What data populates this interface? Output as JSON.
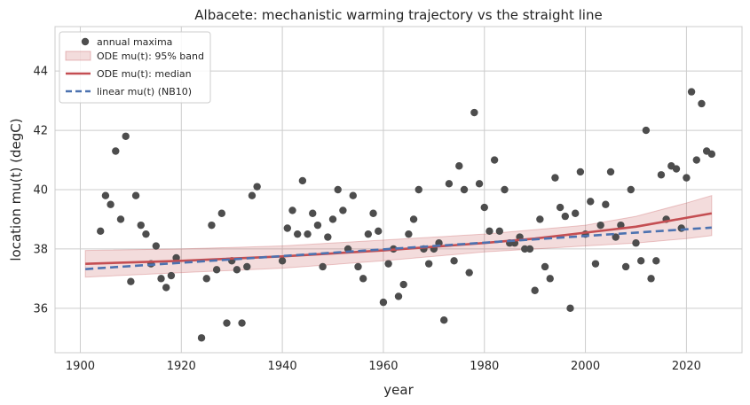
{
  "chart_data": {
    "type": "scatter",
    "title": "Albacete: mechanistic warming trajectory vs the straight line",
    "xlabel": "year",
    "ylabel": "location mu(t)  (degC)",
    "xlim": [
      1895,
      2031
    ],
    "ylim": [
      34.5,
      45.5
    ],
    "xticks": [
      1900,
      1920,
      1940,
      1960,
      1980,
      2000,
      2020
    ],
    "yticks": [
      36,
      38,
      40,
      42,
      44
    ],
    "grid": true,
    "legend_position": "top-left",
    "series": [
      {
        "name": "annual maxima",
        "kind": "points",
        "color": "#4d4d4d",
        "points": [
          [
            1904,
            38.6
          ],
          [
            1905,
            39.8
          ],
          [
            1906,
            39.5
          ],
          [
            1907,
            41.3
          ],
          [
            1908,
            39.0
          ],
          [
            1909,
            41.8
          ],
          [
            1910,
            36.9
          ],
          [
            1911,
            39.8
          ],
          [
            1912,
            38.8
          ],
          [
            1913,
            38.5
          ],
          [
            1914,
            37.5
          ],
          [
            1915,
            38.1
          ],
          [
            1916,
            37.0
          ],
          [
            1917,
            36.7
          ],
          [
            1918,
            37.1
          ],
          [
            1919,
            37.7
          ],
          [
            1924,
            35.0
          ],
          [
            1925,
            37.0
          ],
          [
            1926,
            38.8
          ],
          [
            1927,
            37.3
          ],
          [
            1928,
            39.2
          ],
          [
            1929,
            35.5
          ],
          [
            1930,
            37.6
          ],
          [
            1931,
            37.3
          ],
          [
            1932,
            35.5
          ],
          [
            1933,
            37.4
          ],
          [
            1934,
            39.8
          ],
          [
            1935,
            40.1
          ],
          [
            1940,
            37.6
          ],
          [
            1941,
            38.7
          ],
          [
            1942,
            39.3
          ],
          [
            1943,
            38.5
          ],
          [
            1944,
            40.3
          ],
          [
            1945,
            38.5
          ],
          [
            1946,
            39.2
          ],
          [
            1947,
            38.8
          ],
          [
            1948,
            37.4
          ],
          [
            1949,
            38.4
          ],
          [
            1950,
            39.0
          ],
          [
            1951,
            40.0
          ],
          [
            1952,
            39.3
          ],
          [
            1953,
            38.0
          ],
          [
            1954,
            39.8
          ],
          [
            1955,
            37.4
          ],
          [
            1956,
            37.0
          ],
          [
            1957,
            38.5
          ],
          [
            1958,
            39.2
          ],
          [
            1959,
            38.6
          ],
          [
            1960,
            36.2
          ],
          [
            1961,
            37.5
          ],
          [
            1962,
            38.0
          ],
          [
            1963,
            36.4
          ],
          [
            1964,
            36.8
          ],
          [
            1965,
            38.5
          ],
          [
            1966,
            39.0
          ],
          [
            1967,
            40.0
          ],
          [
            1968,
            38.0
          ],
          [
            1969,
            37.5
          ],
          [
            1970,
            38.0
          ],
          [
            1971,
            38.2
          ],
          [
            1972,
            35.6
          ],
          [
            1973,
            40.2
          ],
          [
            1974,
            37.6
          ],
          [
            1975,
            40.8
          ],
          [
            1976,
            40.0
          ],
          [
            1977,
            37.2
          ],
          [
            1978,
            42.6
          ],
          [
            1979,
            40.2
          ],
          [
            1980,
            39.4
          ],
          [
            1981,
            38.6
          ],
          [
            1982,
            41.0
          ],
          [
            1983,
            38.6
          ],
          [
            1984,
            40.0
          ],
          [
            1985,
            38.2
          ],
          [
            1986,
            38.2
          ],
          [
            1987,
            38.4
          ],
          [
            1988,
            38.0
          ],
          [
            1989,
            38.0
          ],
          [
            1990,
            36.6
          ],
          [
            1991,
            39.0
          ],
          [
            1992,
            37.4
          ],
          [
            1993,
            37.0
          ],
          [
            1994,
            40.4
          ],
          [
            1995,
            39.4
          ],
          [
            1996,
            39.1
          ],
          [
            1997,
            36.0
          ],
          [
            1998,
            39.2
          ],
          [
            1999,
            40.6
          ],
          [
            2000,
            38.5
          ],
          [
            2001,
            39.6
          ],
          [
            2002,
            37.5
          ],
          [
            2003,
            38.8
          ],
          [
            2004,
            39.5
          ],
          [
            2005,
            40.6
          ],
          [
            2006,
            38.4
          ],
          [
            2007,
            38.8
          ],
          [
            2008,
            37.4
          ],
          [
            2009,
            40.0
          ],
          [
            2010,
            38.2
          ],
          [
            2011,
            37.6
          ],
          [
            2012,
            42.0
          ],
          [
            2013,
            37.0
          ],
          [
            2014,
            37.6
          ],
          [
            2015,
            40.5
          ],
          [
            2016,
            39.0
          ],
          [
            2017,
            40.8
          ],
          [
            2018,
            40.7
          ],
          [
            2019,
            38.7
          ],
          [
            2020,
            40.4
          ],
          [
            2021,
            43.3
          ],
          [
            2022,
            41.0
          ],
          [
            2023,
            42.9
          ],
          [
            2024,
            41.3
          ],
          [
            2025,
            41.2
          ]
        ]
      },
      {
        "name": "ODE mu(t): 95% band",
        "kind": "band",
        "color": "#c44e52",
        "x": [
          1901,
          1920,
          1940,
          1960,
          1980,
          2000,
          2010,
          2020,
          2025
        ],
        "lower": [
          37.05,
          37.2,
          37.35,
          37.6,
          37.9,
          38.1,
          38.2,
          38.35,
          38.45
        ],
        "upper": [
          37.95,
          38.0,
          38.1,
          38.3,
          38.5,
          38.8,
          39.1,
          39.55,
          39.8
        ]
      },
      {
        "name": "ODE mu(t): median",
        "kind": "line",
        "color": "#c44e52",
        "x": [
          1901,
          1920,
          1940,
          1960,
          1980,
          1990,
          2000,
          2010,
          2020,
          2025
        ],
        "y": [
          37.5,
          37.6,
          37.75,
          37.95,
          38.2,
          38.35,
          38.55,
          38.75,
          39.05,
          39.2
        ]
      },
      {
        "name": "linear mu(t) (NB10)",
        "kind": "dashed-line",
        "color": "#4c72b0",
        "x": [
          1901,
          2025
        ],
        "y": [
          37.32,
          38.72
        ]
      }
    ]
  }
}
